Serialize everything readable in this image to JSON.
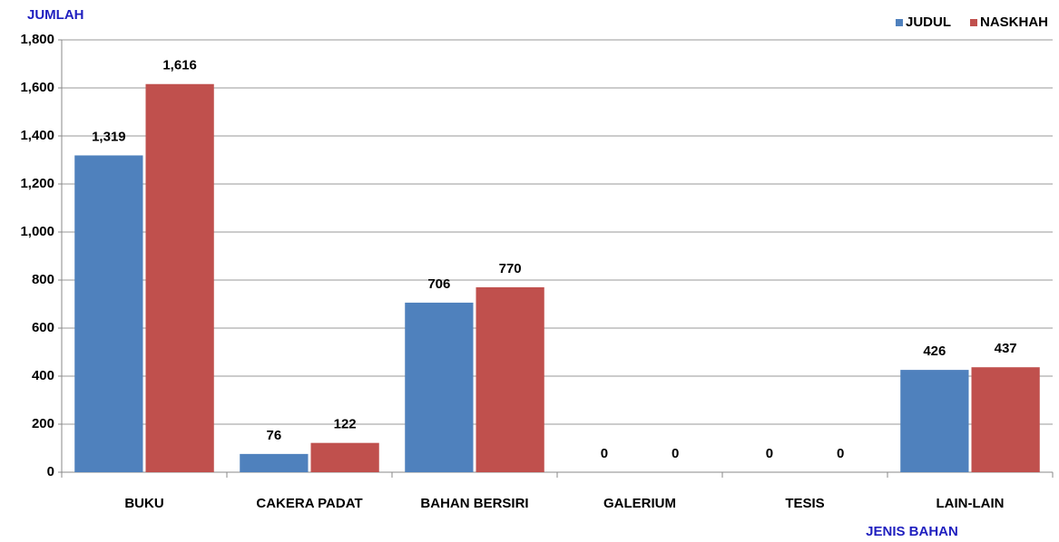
{
  "chart_data": {
    "type": "bar",
    "y_label": "JUMLAH",
    "x_label": "JENIS BAHAN",
    "categories": [
      "BUKU",
      "CAKERA PADAT",
      "BAHAN BERSIRI",
      "GALERIUM",
      "TESIS",
      "LAIN-LAIN"
    ],
    "series": [
      {
        "name": "JUDUL",
        "color": "#4f81bd",
        "values": [
          1319,
          76,
          706,
          0,
          0,
          426
        ],
        "value_labels": [
          "1,319",
          "76",
          "706",
          "0",
          "0",
          "426"
        ]
      },
      {
        "name": "NASKHAH",
        "color": "#c0504d",
        "values": [
          1616,
          122,
          770,
          0,
          0,
          437
        ],
        "value_labels": [
          "1,616",
          "122",
          "770",
          "0",
          "0",
          "437"
        ]
      }
    ],
    "ylim": [
      0,
      1800
    ],
    "yticks": [
      0,
      200,
      400,
      600,
      800,
      {
        "value": 1000,
        "label": "1,000"
      },
      {
        "value": 1200,
        "label": "1,200"
      },
      {
        "value": 1400,
        "label": "1,400"
      },
      {
        "value": 1600,
        "label": "1,600"
      },
      {
        "value": 1800,
        "label": "1,800"
      }
    ],
    "grid": true,
    "legend": "top-right"
  }
}
